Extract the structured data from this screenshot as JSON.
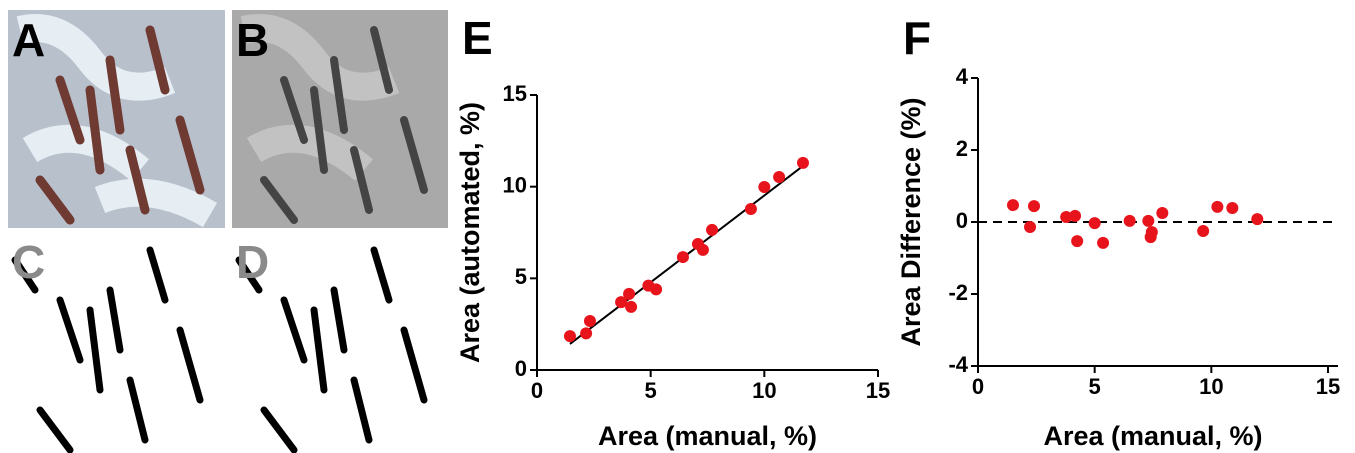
{
  "panels": [
    {
      "label": "A"
    },
    {
      "label": "B"
    },
    {
      "label": "C"
    },
    {
      "label": "D"
    }
  ],
  "chart_data": [
    {
      "type": "scatter",
      "panel": "E",
      "color": "#e8141c",
      "x": [
        1.45,
        2.16,
        2.33,
        3.7,
        4.05,
        4.14,
        4.9,
        5.24,
        6.42,
        7.08,
        7.3,
        7.7,
        9.41,
        10.0,
        10.65,
        11.7
      ],
      "values": [
        1.85,
        2.0,
        2.67,
        3.7,
        4.15,
        3.44,
        4.6,
        4.4,
        6.16,
        6.87,
        6.55,
        7.64,
        8.78,
        9.98,
        10.53,
        11.3
      ],
      "fit_line": {
        "x": [
          1.45,
          11.7
        ],
        "y": [
          1.42,
          11.13
        ]
      },
      "xlim": [
        0,
        15
      ],
      "ylim": [
        0,
        15
      ],
      "xticks": [
        0,
        5,
        10,
        15
      ],
      "yticks": [
        0,
        5,
        10,
        15
      ],
      "xlabel": "Area (manual, %)",
      "ylabel": "Area (automated, %)"
    },
    {
      "type": "scatter",
      "panel": "F",
      "color": "#e8141c",
      "x": [
        1.5,
        2.23,
        2.4,
        3.78,
        4.16,
        4.25,
        5.0,
        5.36,
        6.5,
        7.3,
        7.4,
        7.45,
        7.9,
        9.65,
        10.26,
        10.9,
        11.97
      ],
      "values": [
        0.47,
        -0.14,
        0.44,
        0.14,
        0.17,
        -0.53,
        -0.03,
        -0.58,
        0.03,
        0.03,
        -0.42,
        -0.28,
        0.25,
        -0.25,
        0.42,
        0.39,
        0.08
      ],
      "reference_line": 0,
      "xlim": [
        0,
        15
      ],
      "ylim": [
        -4,
        4
      ],
      "xticks": [
        0,
        5,
        10,
        15
      ],
      "yticks": [
        -4,
        -2,
        0,
        2,
        4
      ],
      "xlabel": "Area (manual, %)",
      "ylabel": "Area Difference (%)"
    }
  ]
}
